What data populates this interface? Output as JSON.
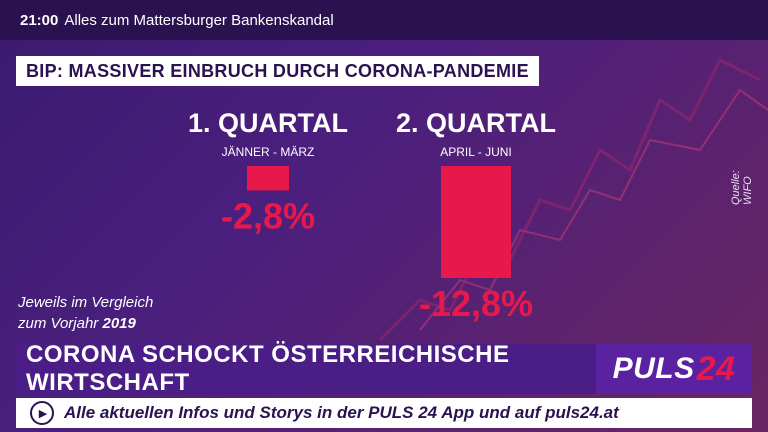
{
  "topbar": {
    "time": "21:00",
    "text": "Alles zum Mattersburger Bankenskandal"
  },
  "headline": "BIP: MASSIVER EINBRUCH DURCH CORONA-PANDEMIE",
  "note": {
    "line1": "Jeweils im Vergleich",
    "line2_prefix": "zum Vorjahr ",
    "year": "2019"
  },
  "source": "Quelle: WIFO",
  "bottom": {
    "title": "CORONA SCHOCKT ÖSTERREICHISCHE WIRTSCHAFT",
    "logo_text": "PULS",
    "logo_num": "24"
  },
  "ticker": {
    "text": "Alle aktuellen Infos und Storys in der PULS 24 App und auf puls24.at",
    "icon": "play-icon"
  },
  "colors": {
    "bar": "#e8194a",
    "label": "#e8194a",
    "accent": "#2a1250"
  },
  "chart_data": {
    "type": "bar",
    "categories": [
      "1. QUARTAL",
      "2. QUARTAL"
    ],
    "subtitles": [
      "JÄNNER - MÄRZ",
      "APRIL - JUNI"
    ],
    "values": [
      -2.8,
      -12.8
    ],
    "value_labels": [
      "-2,8%",
      "-12,8%"
    ],
    "ylim": [
      -14,
      0
    ],
    "grid": false
  }
}
